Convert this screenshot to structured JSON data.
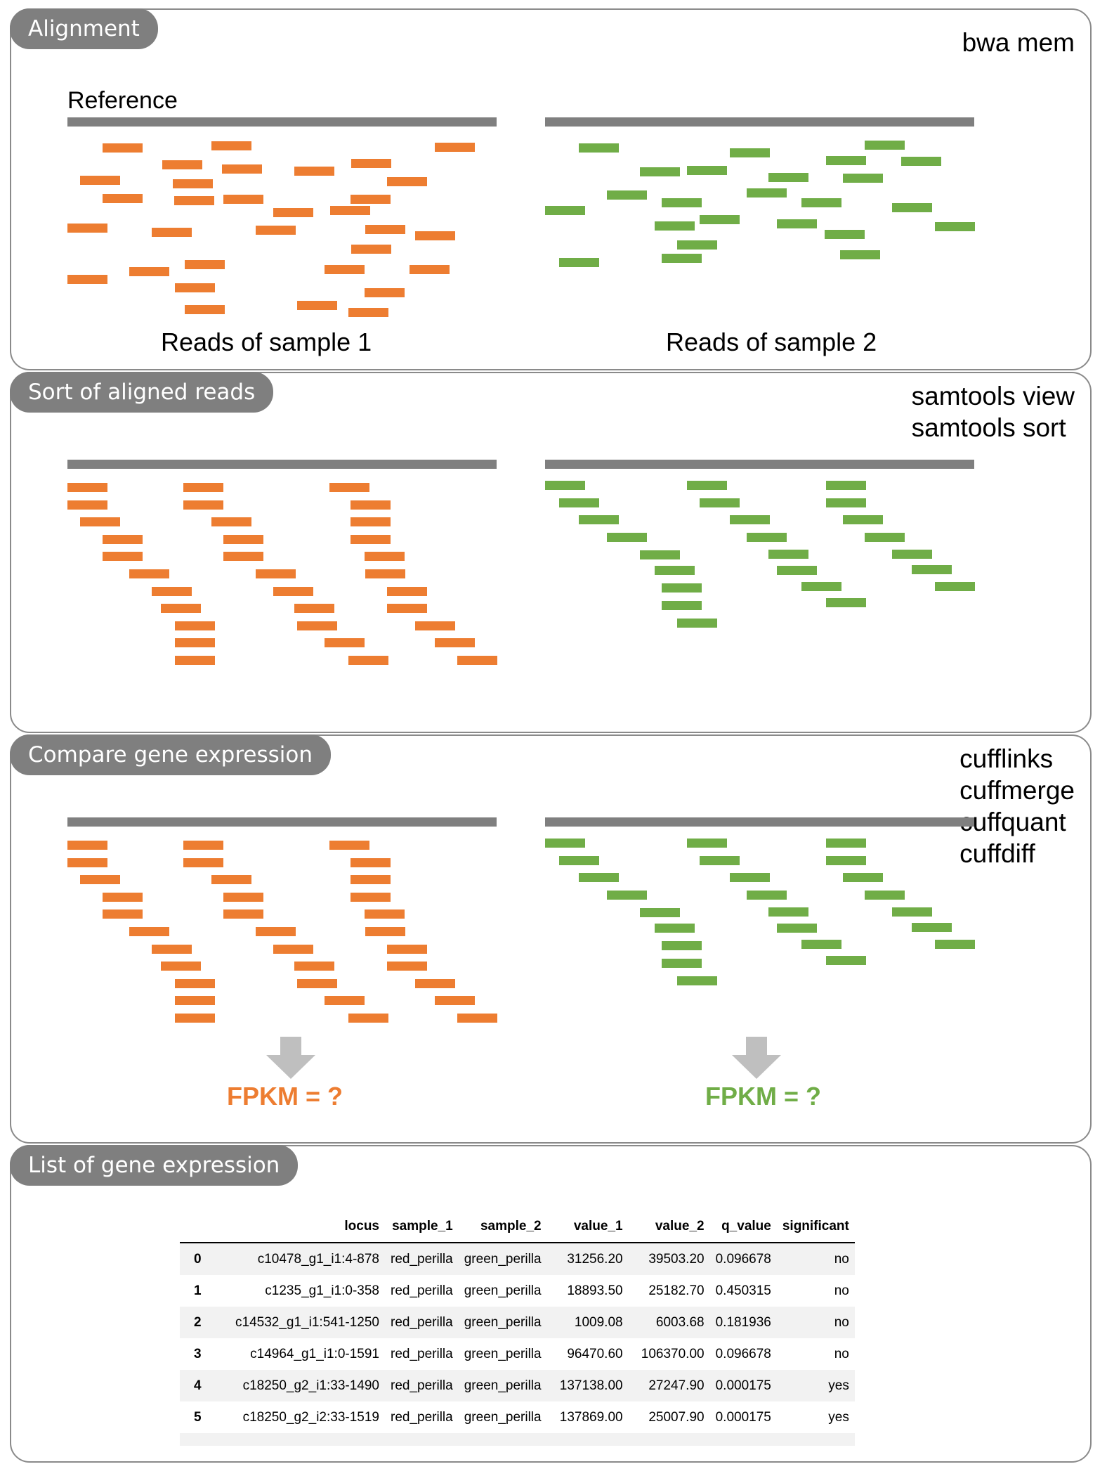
{
  "panels": [
    {
      "tag": "Alignment",
      "tools": "bwa mem",
      "reference_label": "Reference",
      "sample1_label": "Reads of sample 1",
      "sample2_label": "Reads of sample 2"
    },
    {
      "tag": "Sort of aligned reads",
      "tools": "samtools view\nsamtools sort"
    },
    {
      "tag": "Compare gene expression",
      "tools": "cufflinks\ncuffmerge\ncuffquant\ncuffdiff",
      "fpkm1": "FPKM = ?",
      "fpkm2": "FPKM = ?"
    },
    {
      "tag": "List of gene expression"
    }
  ],
  "colors": {
    "sample1": "#ed7d31",
    "sample2": "#70ad47",
    "reference": "#7f7f7f",
    "tag": "#7f7f7f"
  },
  "table": {
    "columns": [
      "",
      "locus",
      "sample_1",
      "sample_2",
      "value_1",
      "value_2",
      "q_value",
      "significant"
    ],
    "rows": [
      [
        "0",
        "c10478_g1_i1:4-878",
        "red_perilla",
        "green_perilla",
        "31256.20",
        "39503.20",
        "0.096678",
        "no"
      ],
      [
        "1",
        "c1235_g1_i1:0-358",
        "red_perilla",
        "green_perilla",
        "18893.50",
        "25182.70",
        "0.450315",
        "no"
      ],
      [
        "2",
        "c14532_g1_i1:541-1250",
        "red_perilla",
        "green_perilla",
        "1009.08",
        "6003.68",
        "0.181936",
        "no"
      ],
      [
        "3",
        "c14964_g1_i1:0-1591",
        "red_perilla",
        "green_perilla",
        "96470.60",
        "106370.00",
        "0.096678",
        "no"
      ],
      [
        "4",
        "c18250_g2_i1:33-1490",
        "red_perilla",
        "green_perilla",
        "137138.00",
        "27247.90",
        "0.000175",
        "yes"
      ],
      [
        "5",
        "c18250_g2_i2:33-1519",
        "red_perilla",
        "green_perilla",
        "137869.00",
        "25007.90",
        "0.000175",
        "yes"
      ]
    ]
  }
}
